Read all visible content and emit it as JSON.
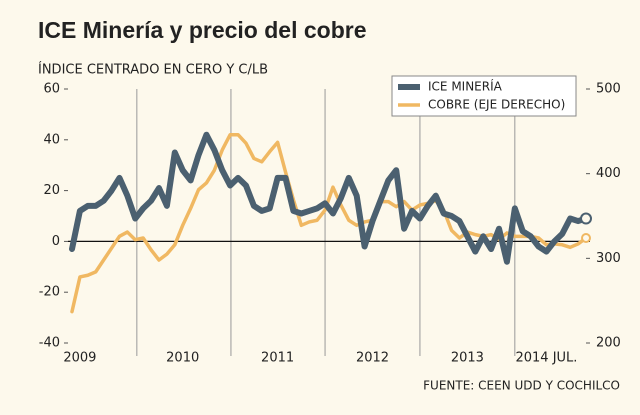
{
  "chart_data": {
    "type": "line",
    "title": "ICE Minería y precio del cobre",
    "subtitle": "ÍNDICE CENTRADO EN CERO Y C/LB",
    "source": "FUENTE: CEEN UDD Y COCHILCO",
    "categories": [
      null,
      "2009",
      null,
      null,
      null,
      null,
      null,
      null,
      null,
      null,
      null,
      null,
      null,
      null,
      "2010",
      null,
      null,
      null,
      null,
      null,
      null,
      null,
      null,
      null,
      null,
      null,
      "2011",
      null,
      null,
      null,
      null,
      null,
      null,
      null,
      null,
      null,
      null,
      null,
      "2012",
      null,
      null,
      null,
      null,
      null,
      null,
      null,
      null,
      null,
      null,
      null,
      "2013",
      null,
      null,
      null,
      null,
      null,
      null,
      null,
      null,
      null,
      "2014 JUL.",
      null,
      null,
      null,
      null,
      null
    ],
    "series": [
      {
        "name": "ICE MINERÍA",
        "color": "#4b6070",
        "values": [
          -3,
          12,
          14,
          14,
          16,
          20,
          25,
          18,
          9,
          13,
          16,
          21,
          14,
          35,
          28,
          24,
          34,
          42,
          36,
          28,
          22,
          25,
          22,
          14,
          12,
          13,
          25,
          25,
          12,
          11,
          12,
          13,
          15,
          11,
          17,
          25,
          18,
          -2,
          8,
          16,
          24,
          28,
          5,
          12,
          9,
          14,
          18,
          11,
          10,
          8,
          2,
          -4,
          2,
          -3,
          5,
          -8,
          13,
          4,
          2,
          -2,
          -4,
          0,
          3,
          9,
          8,
          9
        ]
      },
      {
        "name": "COBRE (EJE DERECHO)",
        "color": "#f0b862",
        "axis": "y2",
        "values": [
          237,
          278,
          280,
          284,
          298,
          312,
          326,
          331,
          322,
          324,
          310,
          298,
          305,
          316,
          339,
          359,
          381,
          389,
          404,
          428,
          446,
          446,
          436,
          418,
          414,
          426,
          437,
          402,
          369,
          339,
          343,
          345,
          357,
          384,
          363,
          345,
          339,
          343,
          345,
          367,
          367,
          361,
          367,
          357,
          363,
          365,
          368,
          357,
          333,
          324,
          331,
          328,
          326,
          328,
          322,
          330,
          326,
          326,
          326,
          324,
          316,
          317,
          316,
          313,
          317,
          324
        ]
      }
    ],
    "ylim": [
      -40,
      60
    ],
    "yticks": [
      60,
      40,
      20,
      0,
      -20,
      -40
    ],
    "y2lim": [
      200,
      500
    ],
    "y2ticks": [
      500,
      400,
      300,
      200
    ],
    "legend": "upper right"
  }
}
